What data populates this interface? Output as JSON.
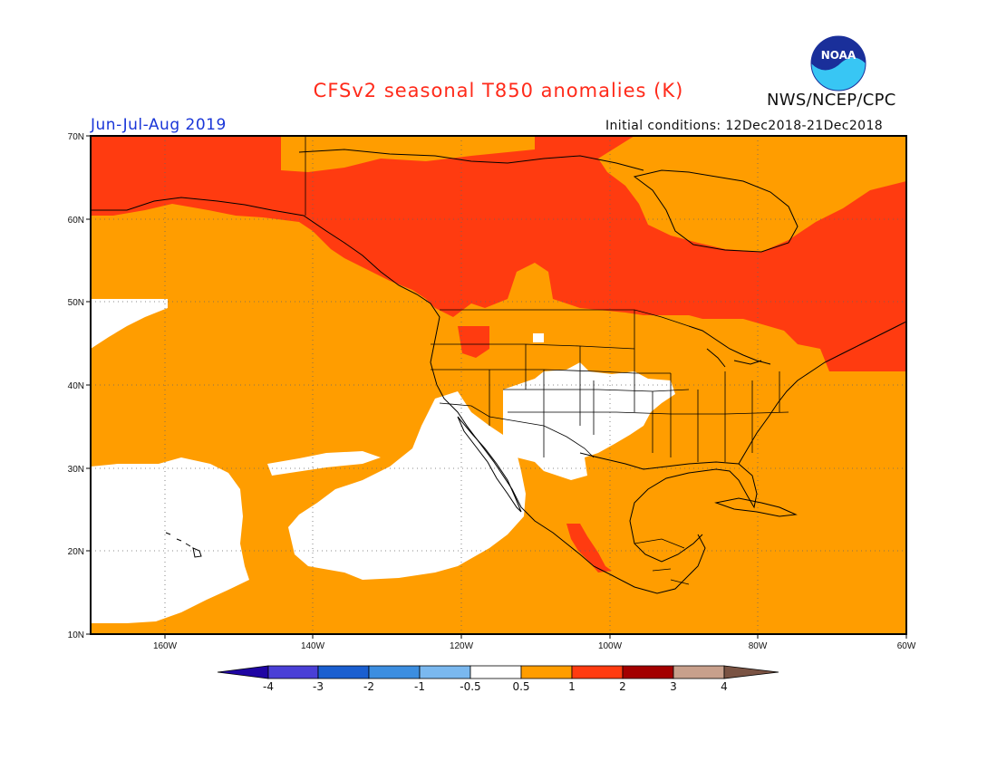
{
  "title": "CFSv2 seasonal T850 anomalies (K)",
  "season_label": "Jun-Jul-Aug 2019",
  "init_label": "Initial conditions: 12Dec2018-21Dec2018",
  "agency_label": "NWS/NCEP/CPC",
  "logo_text": "NOAA",
  "map": {
    "lon_range": [
      -170,
      -60
    ],
    "lat_range": [
      10,
      70
    ],
    "lat_ticks": [
      "70N",
      "60N",
      "50N",
      "40N",
      "30N",
      "20N",
      "10N"
    ],
    "lon_ticks": [
      "160W",
      "140W",
      "120W",
      "100W",
      "80W",
      "60W"
    ]
  },
  "colorbar": {
    "labels": [
      "-4",
      "-3",
      "-2",
      "-1",
      "-0.5",
      "0.5",
      "1",
      "2",
      "3",
      "4"
    ],
    "colors": [
      "#1f05a3",
      "#4a3fd6",
      "#1a5fd0",
      "#3c8ee0",
      "#7ab8ef",
      "#ffffff",
      "#ff9d00",
      "#ff3b10",
      "#a30000",
      "#c8a08c",
      "#7a5343"
    ]
  },
  "colors": {
    "anom_0p5_1": "#ff9d00",
    "anom_1_2": "#ff3b10",
    "anom_2_3": "#a30000",
    "neutral": "#ffffff"
  }
}
